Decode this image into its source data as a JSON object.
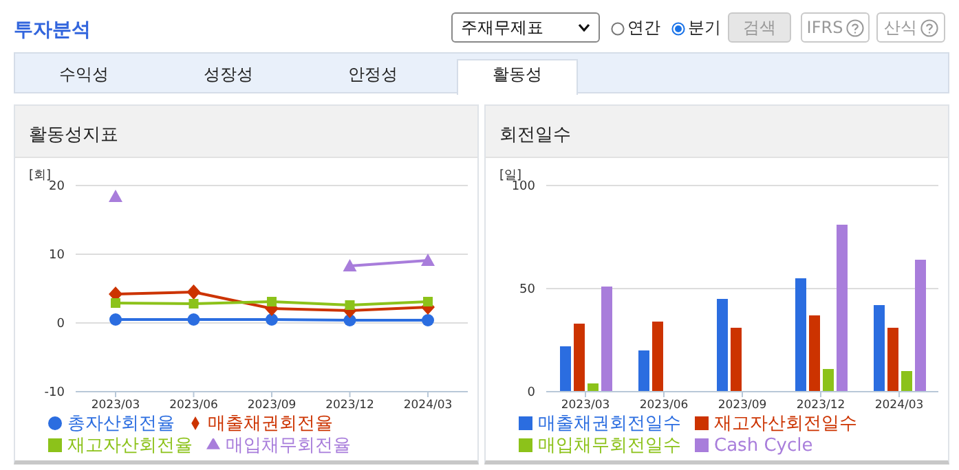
{
  "chart_data": [
    {
      "type": "line",
      "title": "활동성지표",
      "ylabel": "[회]",
      "categories": [
        "2023/03",
        "2023/06",
        "2023/09",
        "2023/12",
        "2024/03"
      ],
      "series": [
        {
          "name": "총자산회전율",
          "color": "#2b6de0",
          "marker": "circle",
          "values": [
            0.5,
            0.5,
            0.5,
            0.4,
            0.4
          ]
        },
        {
          "name": "매출채권회전율",
          "color": "#cc3300",
          "marker": "diamond",
          "values": [
            4.2,
            4.5,
            2.1,
            1.8,
            2.3
          ]
        },
        {
          "name": "재고자산회전율",
          "color": "#8cc21a",
          "marker": "square",
          "values": [
            2.9,
            2.8,
            3.1,
            2.6,
            3.1
          ]
        },
        {
          "name": "매입채무회전율",
          "color": "#a87ddb",
          "marker": "triangle",
          "values": [
            18.4,
            null,
            null,
            8.3,
            9.1
          ]
        }
      ],
      "ylim": [
        -10,
        20
      ],
      "yticks": [
        -10,
        0,
        10,
        20
      ],
      "grid": "y",
      "legend": "bottom",
      "annotations": [
        "투자분석",
        "주재무제표",
        "연간",
        "분기",
        "검색",
        "IFRS",
        "산식",
        "수익성",
        "성장성",
        "안정성",
        "활동성"
      ]
    },
    {
      "type": "bar",
      "title": "회전일수",
      "ylabel": "[일]",
      "categories": [
        "2023/03",
        "2023/06",
        "2023/09",
        "2023/12",
        "2024/03"
      ],
      "series": [
        {
          "name": "매출채권회전일수",
          "color": "#2b6de0",
          "values": [
            22,
            20,
            45,
            55,
            42
          ]
        },
        {
          "name": "재고자산회전일수",
          "color": "#cc3300",
          "values": [
            33,
            34,
            31,
            37,
            31
          ]
        },
        {
          "name": "매입채무회전일수",
          "color": "#8cc21a",
          "values": [
            4,
            null,
            null,
            11,
            10
          ]
        },
        {
          "name": "Cash Cycle",
          "color": "#a87ddb",
          "values": [
            51,
            null,
            null,
            81,
            64
          ]
        }
      ],
      "ylim": [
        0,
        100
      ],
      "yticks": [
        0,
        50,
        100
      ],
      "grid": "y",
      "legend": "bottom"
    }
  ]
}
